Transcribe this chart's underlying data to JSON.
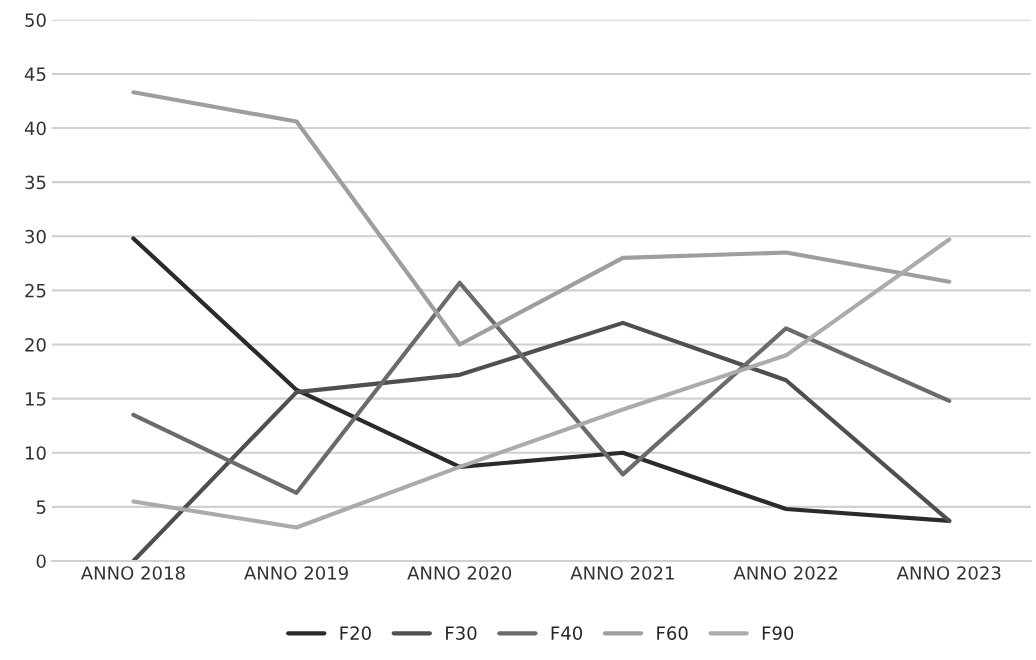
{
  "chart_data": {
    "type": "line",
    "categories": [
      "ANNO 2018",
      "ANNO 2019",
      "ANNO 2020",
      "ANNO 2021",
      "ANNO 2022",
      "ANNO 2023"
    ],
    "series": [
      {
        "name": "F20",
        "color": "#2b2b2b",
        "values": [
          29.8,
          15.8,
          8.7,
          10,
          4.8,
          3.7
        ]
      },
      {
        "name": "F30",
        "color": "#4f4f4f",
        "values": [
          0,
          15.6,
          17.2,
          22,
          16.7,
          3.7
        ]
      },
      {
        "name": "F40",
        "color": "#6b6b6b",
        "values": [
          13.5,
          6.3,
          25.7,
          8,
          21.5,
          14.8
        ]
      },
      {
        "name": "F60",
        "color": "#9e9e9e",
        "values": [
          43.3,
          40.6,
          20,
          28,
          28.5,
          25.8
        ]
      },
      {
        "name": "F90",
        "color": "#ababab",
        "values": [
          5.5,
          3.1,
          8.7,
          14,
          19,
          29.7
        ]
      }
    ],
    "ylim": [
      0,
      50
    ],
    "yticks": [
      0,
      5,
      10,
      15,
      20,
      25,
      30,
      35,
      40,
      45,
      50
    ],
    "grid": "y",
    "legend": "bottom",
    "marker": "none",
    "line_style": "solid"
  }
}
